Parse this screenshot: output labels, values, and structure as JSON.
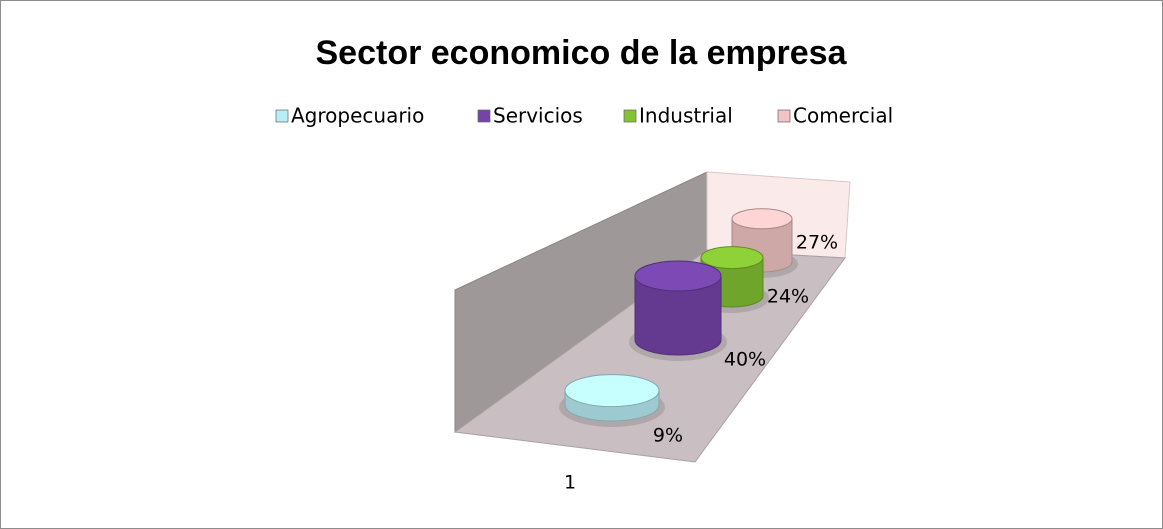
{
  "chart_data": {
    "type": "cylinder3d",
    "title": "Sector economico de la empresa",
    "categories": [
      "1"
    ],
    "legend": "top",
    "series": [
      {
        "name": "Agropecuario",
        "color": "#b8eef5",
        "values": [
          9
        ],
        "value_labels": [
          "9%"
        ]
      },
      {
        "name": "Servicios",
        "color": "#7444a8",
        "values": [
          40
        ],
        "value_labels": [
          "40%"
        ]
      },
      {
        "name": "Industrial",
        "color": "#84c234",
        "values": [
          24
        ],
        "value_labels": [
          "24%"
        ]
      },
      {
        "name": "Comercial",
        "color": "#f2c4c4",
        "values": [
          27
        ],
        "value_labels": [
          "27%"
        ]
      }
    ]
  }
}
